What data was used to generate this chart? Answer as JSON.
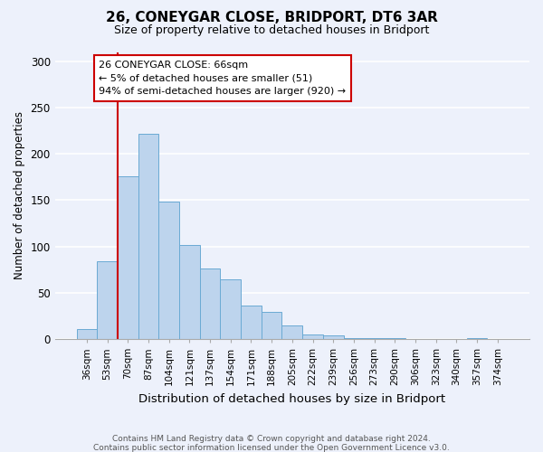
{
  "title": "26, CONEYGAR CLOSE, BRIDPORT, DT6 3AR",
  "subtitle": "Size of property relative to detached houses in Bridport",
  "xlabel": "Distribution of detached houses by size in Bridport",
  "ylabel": "Number of detached properties",
  "footnote1": "Contains HM Land Registry data © Crown copyright and database right 2024.",
  "footnote2": "Contains public sector information licensed under the Open Government Licence v3.0.",
  "bar_labels": [
    "36sqm",
    "53sqm",
    "70sqm",
    "87sqm",
    "104sqm",
    "121sqm",
    "137sqm",
    "154sqm",
    "171sqm",
    "188sqm",
    "205sqm",
    "222sqm",
    "239sqm",
    "256sqm",
    "273sqm",
    "290sqm",
    "306sqm",
    "323sqm",
    "340sqm",
    "357sqm",
    "374sqm"
  ],
  "bar_values": [
    11,
    84,
    176,
    222,
    148,
    102,
    76,
    64,
    36,
    29,
    15,
    5,
    4,
    1,
    1,
    1,
    0,
    0,
    0,
    1,
    0
  ],
  "bar_color": "#bdd4ed",
  "bar_edge_color": "#6aaad4",
  "ylim": [
    0,
    310
  ],
  "yticks": [
    0,
    50,
    100,
    150,
    200,
    250,
    300
  ],
  "vline_x_index": 2,
  "vline_color": "#cc0000",
  "box_text_line1": "26 CONEYGAR CLOSE: 66sqm",
  "box_text_line2": "← 5% of detached houses are smaller (51)",
  "box_text_line3": "94% of semi-detached houses are larger (920) →",
  "background_color": "#edf1fb"
}
